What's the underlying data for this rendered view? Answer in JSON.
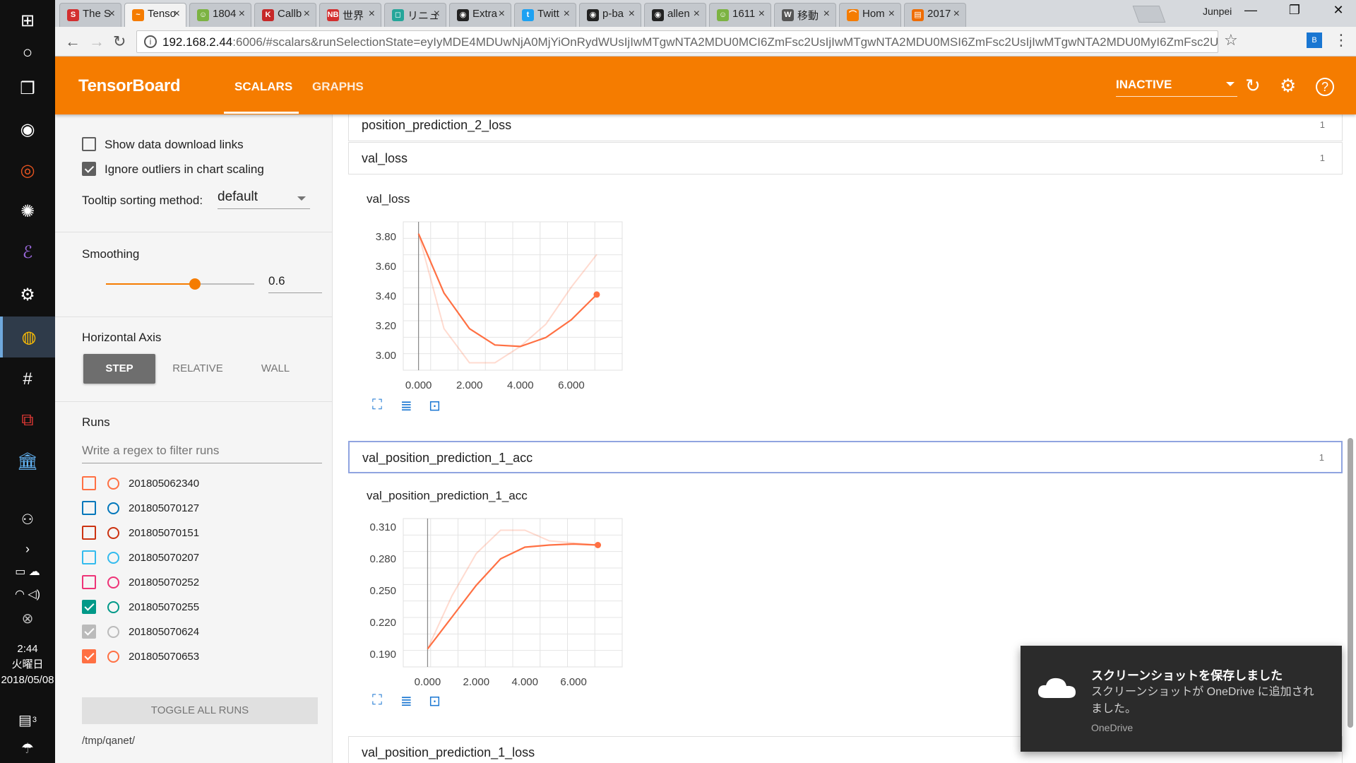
{
  "taskbar": {
    "time": "2:44",
    "weekday": "火曜日",
    "date": "2018/05/08",
    "notification_count": "3"
  },
  "browser": {
    "tabs": [
      {
        "label": "The S",
        "fav": "S",
        "color": "#d32f2f"
      },
      {
        "label": "Tenso",
        "fav": "~",
        "color": "#f57c00"
      },
      {
        "label": "1804",
        "fav": "☺",
        "color": "#7cb342"
      },
      {
        "label": "Callb",
        "fav": "K",
        "color": "#c62828"
      },
      {
        "label": "世界",
        "fav": "NB",
        "color": "#d32f2f"
      },
      {
        "label": "リニュ",
        "fav": "◻",
        "color": "#26a69a"
      },
      {
        "label": "Extra",
        "fav": "◉",
        "color": "#222222"
      },
      {
        "label": "Twitt",
        "fav": "t",
        "color": "#1da1f2"
      },
      {
        "label": "p-ba",
        "fav": "◉",
        "color": "#222222"
      },
      {
        "label": "allen",
        "fav": "◉",
        "color": "#222222"
      },
      {
        "label": "1611",
        "fav": "☺",
        "color": "#7cb342"
      },
      {
        "label": "移動",
        "fav": "W",
        "color": "#555555"
      },
      {
        "label": "Hom",
        "fav": "⌒",
        "color": "#f57c00"
      },
      {
        "label": "2017",
        "fav": "▤",
        "color": "#ef6c00"
      }
    ],
    "user": "Junpei",
    "url_host": "192.168.2.44",
    "url_rest": ":6006/#scalars&runSelectionState=eyIyMDE4MDUwNjA0MjYiOnRydWUsIjIwMTgwNTA2MDU0MCI6ZmFsc2UsIjIwMTgwNTA2MDU0MSI6ZmFsc2UsIjIwMTgwNTA2MDU0MyI6ZmFsc2UsIjIwMT..."
  },
  "header": {
    "title": "TensorBoard",
    "tabs": [
      "SCALARS",
      "GRAPHS"
    ],
    "status": "INACTIVE"
  },
  "sidebar": {
    "show_download": "Show data download links",
    "ignore_outliers": "Ignore outliers in chart scaling",
    "tooltip_label": "Tooltip sorting method:",
    "tooltip_value": "default",
    "smoothing_label": "Smoothing",
    "smoothing_value": "0.6",
    "smoothing_fraction": 0.6,
    "haxis_label": "Horizontal Axis",
    "haxis_options": [
      "STEP",
      "RELATIVE",
      "WALL"
    ],
    "runs_label": "Runs",
    "filter_placeholder": "Write a regex to filter runs",
    "runs": [
      {
        "name": "201805062340",
        "color": "#ff7043",
        "checked": false
      },
      {
        "name": "201805070127",
        "color": "#0077bb",
        "checked": false
      },
      {
        "name": "201805070151",
        "color": "#cc3311",
        "checked": false
      },
      {
        "name": "201805070207",
        "color": "#33bbee",
        "checked": false
      },
      {
        "name": "201805070252",
        "color": "#ee3377",
        "checked": false
      },
      {
        "name": "201805070255",
        "color": "#009988",
        "checked": true
      },
      {
        "name": "201805070624",
        "color": "#bbbbbb",
        "checked": true
      },
      {
        "name": "201805070653",
        "color": "#ff7043",
        "checked": true
      }
    ],
    "toggle_all": "TOGGLE ALL RUNS",
    "logdir": "/tmp/qanet/"
  },
  "main": {
    "categories": [
      {
        "name": "position_prediction_2_loss",
        "count": "1"
      },
      {
        "name": "val_loss",
        "count": "1"
      },
      {
        "name": "val_position_prediction_1_acc",
        "count": "1"
      },
      {
        "name": "val_position_prediction_1_loss",
        "count": ""
      }
    ],
    "charts": [
      {
        "title": "val_loss"
      },
      {
        "title": "val_position_prediction_1_acc"
      }
    ]
  },
  "chart_data": [
    {
      "type": "line",
      "title": "val_loss",
      "x": [
        0,
        1,
        2,
        3,
        4,
        5,
        6,
        7
      ],
      "series": [
        {
          "name": "201805070653 (smoothed)",
          "values": [
            3.82,
            3.42,
            3.18,
            3.07,
            3.06,
            3.12,
            3.24,
            3.41
          ]
        },
        {
          "name": "201805070653 (raw)",
          "values": [
            3.82,
            3.18,
            2.95,
            2.95,
            3.06,
            3.21,
            3.46,
            3.68
          ]
        }
      ],
      "xticks": [
        "0.000",
        "2.000",
        "4.000",
        "6.000"
      ],
      "yticks": [
        "3.00",
        "3.20",
        "3.40",
        "3.60",
        "3.80"
      ],
      "xlim": [
        -0.6,
        8.0
      ],
      "ylim": [
        2.9,
        3.9
      ]
    },
    {
      "type": "line",
      "title": "val_position_prediction_1_acc",
      "x": [
        0,
        1,
        2,
        3,
        4,
        5,
        6,
        7
      ],
      "series": [
        {
          "name": "201805070653 (smoothed)",
          "values": [
            0.195,
            0.225,
            0.255,
            0.28,
            0.291,
            0.293,
            0.294,
            0.293
          ]
        },
        {
          "name": "201805070653 (raw)",
          "values": [
            0.195,
            0.245,
            0.285,
            0.307,
            0.307,
            0.297,
            0.295,
            0.293
          ]
        }
      ],
      "xticks": [
        "0.000",
        "2.000",
        "4.000",
        "6.000"
      ],
      "yticks": [
        "0.190",
        "0.220",
        "0.250",
        "0.280",
        "0.310"
      ],
      "xlim": [
        -1.0,
        8.0
      ],
      "ylim": [
        0.178,
        0.318
      ]
    }
  ],
  "toast": {
    "title": "スクリーンショットを保存しました",
    "body": "スクリーンショットが OneDrive に追加されました。",
    "source": "OneDrive"
  }
}
